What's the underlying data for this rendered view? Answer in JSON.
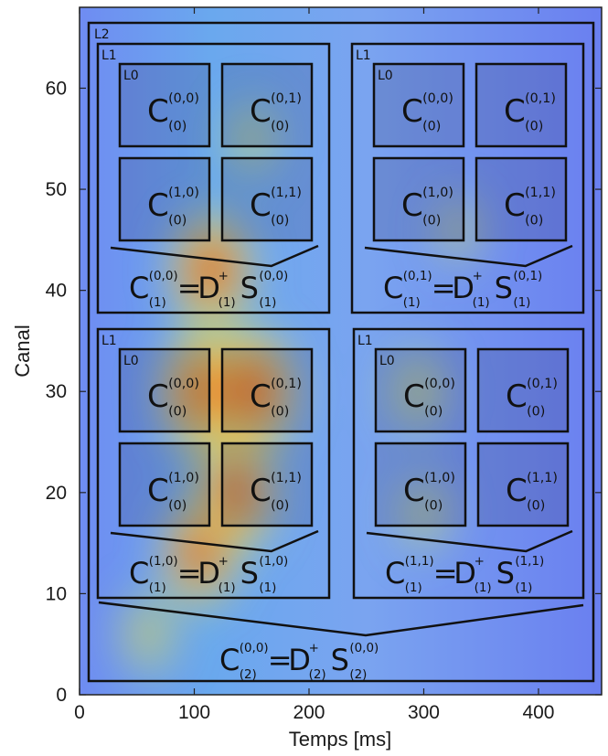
{
  "chart_data": {
    "type": "heatmap",
    "title": "",
    "xlabel": "Temps [ms]",
    "ylabel": "Canal",
    "xlim": [
      0,
      455
    ],
    "ylim": [
      0,
      68
    ],
    "xticks": [
      0,
      100,
      200,
      300,
      400
    ],
    "yticks": [
      0,
      10,
      20,
      30,
      40,
      50,
      60
    ],
    "colormap": "jet-like (blue low, red high)",
    "hotspots": [
      {
        "x": 110,
        "y": 30,
        "intensity": 1.0
      },
      {
        "x": 150,
        "y": 30,
        "intensity": 0.95
      },
      {
        "x": 115,
        "y": 42,
        "intensity": 0.85
      },
      {
        "x": 135,
        "y": 20,
        "intensity": 0.85
      },
      {
        "x": 105,
        "y": 14,
        "intensity": 0.75
      },
      {
        "x": 60,
        "y": 6,
        "intensity": 0.55
      },
      {
        "x": 295,
        "y": 30,
        "intensity": 0.55
      },
      {
        "x": 300,
        "y": 18,
        "intensity": 0.45
      },
      {
        "x": 330,
        "y": 46,
        "intensity": 0.35
      },
      {
        "x": 150,
        "y": 55,
        "intensity": 0.45
      }
    ]
  },
  "boxes": {
    "level2": {
      "tag": "L2"
    },
    "level1_tag": "L1",
    "level0_tag": "L0",
    "quadrants": [
      {
        "id": "q00",
        "cells": [
          [
            "0,0",
            "0,1"
          ],
          [
            "1,0",
            "1,1"
          ]
        ],
        "eq_index": "0,0"
      },
      {
        "id": "q01",
        "cells": [
          [
            "0,0",
            "0,1"
          ],
          [
            "1,0",
            "1,1"
          ]
        ],
        "eq_index": "0,1"
      },
      {
        "id": "q10",
        "cells": [
          [
            "0,0",
            "0,1"
          ],
          [
            "1,0",
            "1,1"
          ]
        ],
        "eq_index": "1,0"
      },
      {
        "id": "q11",
        "cells": [
          [
            "0,0",
            "0,1"
          ],
          [
            "1,0",
            "1,1"
          ]
        ],
        "eq_index": "1,1"
      }
    ]
  },
  "symbols": {
    "C": "C",
    "D": "D",
    "S": "S",
    "equals": "=",
    "plus": "+",
    "level0_sub": "(0)",
    "level1_sub": "(1)",
    "level2_sub": "(2)",
    "top_index": "0,0"
  },
  "colors": {
    "frame": "#111111",
    "overlay_box": "rgba(40,40,90,0.18)"
  }
}
